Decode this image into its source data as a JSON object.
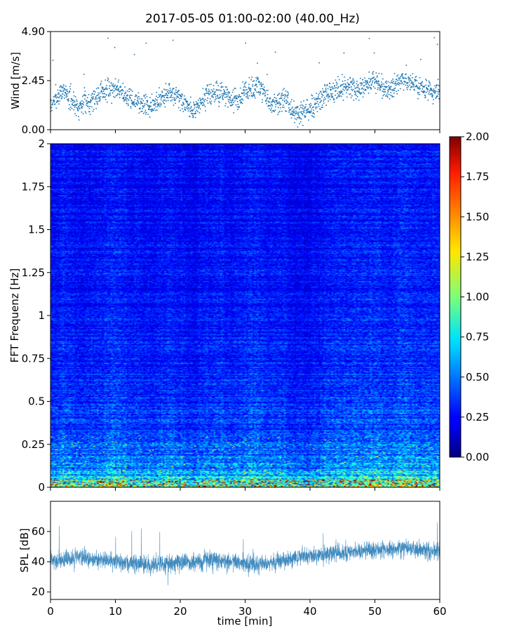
{
  "figure": {
    "title": "2017-05-05 01:00-02:00 (40.00_Hz)"
  },
  "chart_data": [
    {
      "type": "scatter",
      "name": "wind-panel",
      "ylabel": "Wind [m/s]",
      "xlim": [
        0,
        60
      ],
      "ylim": [
        0,
        4.9
      ],
      "yticks": [
        "0.00",
        "2.45",
        "4.90"
      ],
      "color": "#1f77b4",
      "trend": [
        [
          0,
          1.2
        ],
        [
          2,
          2.0
        ],
        [
          4,
          1.2
        ],
        [
          6,
          1.4
        ],
        [
          8,
          1.9
        ],
        [
          10,
          2.1
        ],
        [
          12,
          1.6
        ],
        [
          14,
          1.3
        ],
        [
          16,
          1.2
        ],
        [
          18,
          1.9
        ],
        [
          20,
          1.5
        ],
        [
          22,
          0.9
        ],
        [
          24,
          1.7
        ],
        [
          26,
          1.9
        ],
        [
          28,
          1.4
        ],
        [
          30,
          1.8
        ],
        [
          32,
          2.2
        ],
        [
          34,
          1.2
        ],
        [
          36,
          1.6
        ],
        [
          37,
          1.1
        ],
        [
          38,
          0.7
        ],
        [
          40,
          1.0
        ],
        [
          42,
          1.6
        ],
        [
          44,
          2.0
        ],
        [
          46,
          2.2
        ],
        [
          48,
          2.0
        ],
        [
          50,
          2.5
        ],
        [
          52,
          1.9
        ],
        [
          54,
          2.5
        ],
        [
          56,
          2.3
        ],
        [
          58,
          2.0
        ],
        [
          60,
          1.8
        ]
      ]
    },
    {
      "type": "heatmap",
      "name": "spectrogram-panel",
      "ylabel": "FFT Frequenz [Hz]",
      "xlim": [
        0,
        60
      ],
      "ylim": [
        0,
        2
      ],
      "yticks": [
        "0",
        "0.25",
        "0.5",
        "0.75",
        "1",
        "1.25",
        "1.5",
        "1.75",
        "2"
      ],
      "colormap": "jet",
      "clim": [
        0,
        2
      ],
      "colorbar_ticks": [
        "0.00",
        "0.25",
        "0.50",
        "0.75",
        "1.00",
        "1.25",
        "1.50",
        "1.75",
        "2.00"
      ],
      "intensity_profile": [
        [
          0.0,
          1.05
        ],
        [
          0.05,
          0.75
        ],
        [
          0.15,
          0.5
        ],
        [
          0.3,
          0.42
        ],
        [
          0.5,
          0.36
        ],
        [
          0.75,
          0.32
        ],
        [
          1.0,
          0.3
        ],
        [
          1.5,
          0.28
        ],
        [
          2.0,
          0.27
        ]
      ]
    },
    {
      "type": "line",
      "name": "spl-panel",
      "ylabel": "SPL [dB]",
      "xlabel": "time [min]",
      "xlim": [
        0,
        60
      ],
      "ylim": [
        15,
        80
      ],
      "yticks": [
        "20",
        "40",
        "60"
      ],
      "xticks": [
        "0",
        "10",
        "20",
        "30",
        "40",
        "50",
        "60"
      ],
      "color": "#1f77b4",
      "trend": [
        [
          0,
          41
        ],
        [
          5,
          43
        ],
        [
          10,
          40
        ],
        [
          15,
          38
        ],
        [
          20,
          39
        ],
        [
          25,
          41
        ],
        [
          30,
          39
        ],
        [
          32,
          38
        ],
        [
          35,
          40
        ],
        [
          40,
          44
        ],
        [
          45,
          46
        ],
        [
          50,
          48
        ],
        [
          55,
          49
        ],
        [
          60,
          47
        ]
      ]
    }
  ]
}
